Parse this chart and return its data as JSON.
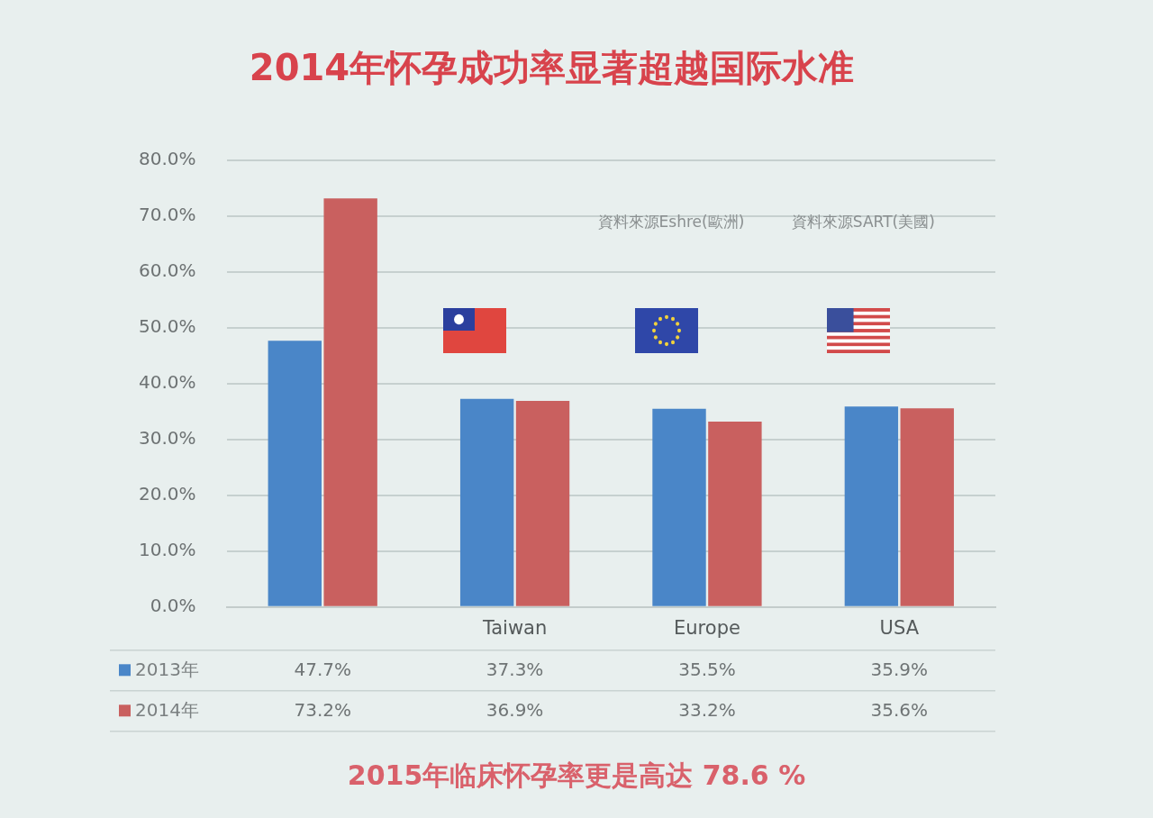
{
  "chart_data": {
    "type": "bar",
    "title": "2014年怀孕成功率显著超越国际水准",
    "categories": [
      null,
      "Taiwan",
      "Europe",
      "USA"
    ],
    "series": [
      {
        "name": "2013年",
        "color": "#4a86c8",
        "values": [
          47.7,
          37.3,
          35.5,
          35.9
        ],
        "value_labels": [
          "47.7%",
          "37.3%",
          "35.5%",
          "35.9%"
        ]
      },
      {
        "name": "2014年",
        "color": "#c9605f",
        "values": [
          73.2,
          36.9,
          33.2,
          35.6
        ],
        "value_labels": [
          "73.2%",
          "36.9%",
          "33.2%",
          "35.6%"
        ]
      }
    ],
    "ylim": [
      0,
      80
    ],
    "yticks": [
      {
        "value": 0,
        "label": "0.0%"
      },
      {
        "value": 10,
        "label": "10.0%"
      },
      {
        "value": 20,
        "label": "20.0%"
      },
      {
        "value": 30,
        "label": "30.0%"
      },
      {
        "value": 40,
        "label": "40.0%"
      },
      {
        "value": 50,
        "label": "50.0%"
      },
      {
        "value": 60,
        "label": "60.0%"
      },
      {
        "value": 70,
        "label": "70.0%"
      },
      {
        "value": 80,
        "label": "80.0%"
      }
    ],
    "grid": "y",
    "legend": "bottom",
    "annotations": [
      "資料來源Eshre(歐洲)",
      "資料來源SART(美國)",
      "2015年临床怀孕率更是高达 78.6 %"
    ]
  }
}
